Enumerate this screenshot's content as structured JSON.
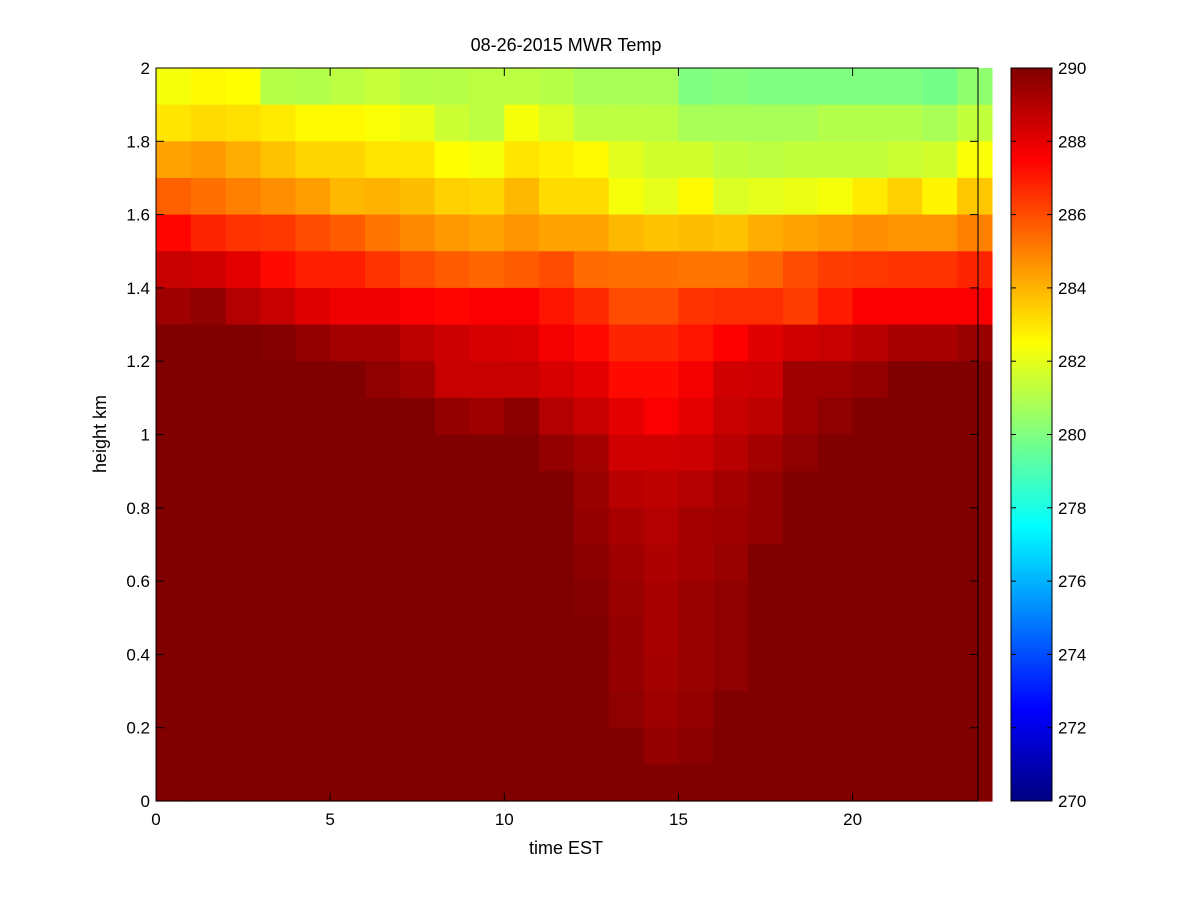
{
  "chart_data": {
    "type": "heatmap",
    "title": "08-26-2015 MWR Temp",
    "xlabel": "time EST",
    "ylabel": "height km",
    "xlim": [
      0,
      23.6
    ],
    "ylim": [
      0,
      2
    ],
    "x_ticks": [
      "0",
      "5",
      "10",
      "15",
      "20"
    ],
    "y_ticks": [
      "0",
      "0.2",
      "0.4",
      "0.6",
      "0.8",
      "1",
      "1.2",
      "1.4",
      "1.6",
      "1.8",
      "2"
    ],
    "colormap": "jet",
    "clim": [
      270,
      290
    ],
    "colorbar_ticks": [
      "270",
      "272",
      "274",
      "276",
      "278",
      "280",
      "282",
      "284",
      "286",
      "288",
      "290"
    ],
    "time_start": 0,
    "time_step": 1,
    "n_times": 24,
    "height_bin_km": 0.1,
    "rows_top_to_bottom": [
      [
        282.3,
        282.6,
        282.5,
        281.1,
        281.0,
        281.2,
        281.4,
        281.1,
        281.1,
        281.2,
        281.2,
        281.1,
        280.8,
        280.8,
        280.8,
        280.0,
        280.1,
        280.0,
        280.0,
        280.0,
        280.0,
        280.0,
        279.8,
        280.3
      ],
      [
        283.0,
        283.2,
        283.1,
        282.9,
        282.6,
        282.6,
        282.4,
        282.1,
        281.5,
        281.2,
        282.3,
        281.8,
        281.2,
        281.2,
        281.2,
        280.8,
        280.8,
        280.8,
        280.8,
        281.0,
        281.0,
        281.0,
        280.8,
        281.3
      ],
      [
        284.3,
        284.5,
        284.1,
        283.7,
        283.3,
        283.3,
        283.0,
        283.0,
        282.5,
        282.3,
        283.0,
        282.8,
        282.6,
        281.9,
        281.6,
        281.6,
        281.3,
        281.2,
        281.3,
        281.3,
        281.3,
        281.5,
        281.6,
        282.4
      ],
      [
        285.6,
        285.3,
        285.0,
        284.7,
        284.4,
        283.9,
        284.0,
        283.8,
        283.4,
        283.3,
        283.9,
        283.2,
        283.2,
        282.3,
        282.0,
        282.6,
        281.8,
        282.0,
        282.1,
        282.3,
        282.9,
        283.4,
        282.7,
        283.6
      ],
      [
        287.4,
        286.8,
        286.5,
        286.4,
        286.0,
        285.7,
        285.2,
        284.8,
        284.5,
        284.3,
        284.6,
        284.3,
        284.3,
        283.9,
        283.7,
        283.8,
        283.7,
        284.1,
        284.3,
        284.5,
        284.7,
        284.6,
        284.6,
        285.0
      ],
      [
        288.6,
        288.4,
        288.0,
        287.3,
        286.9,
        286.9,
        286.5,
        286.0,
        285.7,
        285.5,
        285.7,
        286.0,
        285.4,
        285.3,
        285.3,
        285.2,
        285.2,
        285.5,
        286.0,
        286.3,
        286.4,
        286.5,
        286.5,
        286.8
      ],
      [
        289.4,
        289.7,
        289.0,
        288.6,
        288.1,
        287.8,
        287.8,
        287.6,
        287.4,
        287.6,
        287.6,
        287.1,
        286.7,
        286.0,
        286.0,
        286.5,
        286.6,
        286.6,
        286.3,
        287.0,
        287.6,
        287.6,
        287.6,
        287.6
      ],
      [
        290.0,
        290.0,
        290.0,
        289.9,
        289.6,
        289.3,
        289.3,
        288.8,
        288.5,
        288.3,
        288.2,
        287.7,
        287.3,
        286.8,
        286.8,
        287.1,
        287.5,
        288.1,
        288.4,
        288.6,
        288.9,
        289.2,
        289.2,
        289.5
      ],
      [
        290.0,
        290.0,
        290.0,
        290.0,
        290.0,
        290.0,
        289.7,
        289.4,
        288.6,
        288.6,
        288.6,
        288.3,
        288.0,
        287.3,
        287.3,
        287.7,
        288.4,
        288.5,
        289.4,
        289.4,
        289.6,
        290.0,
        290.0,
        290.0
      ],
      [
        290.0,
        290.0,
        290.0,
        290.0,
        290.0,
        290.0,
        290.0,
        290.0,
        289.6,
        289.4,
        289.8,
        289.0,
        288.6,
        288.0,
        287.6,
        288.0,
        288.6,
        288.8,
        289.4,
        289.7,
        290.0,
        290.0,
        290.0,
        290.0
      ],
      [
        290.0,
        290.0,
        290.0,
        290.0,
        290.0,
        290.0,
        290.0,
        290.0,
        290.0,
        290.0,
        290.0,
        289.6,
        289.3,
        288.4,
        288.4,
        288.5,
        288.9,
        289.3,
        289.7,
        290.0,
        290.0,
        290.0,
        290.0,
        290.0
      ],
      [
        290.0,
        290.0,
        290.0,
        290.0,
        290.0,
        290.0,
        290.0,
        290.0,
        290.0,
        290.0,
        290.0,
        290.0,
        289.5,
        288.9,
        288.8,
        289.0,
        289.3,
        289.6,
        290.0,
        290.0,
        290.0,
        290.0,
        290.0,
        290.0
      ],
      [
        290.0,
        290.0,
        290.0,
        290.0,
        290.0,
        290.0,
        290.0,
        290.0,
        290.0,
        290.0,
        290.0,
        290.0,
        289.6,
        289.2,
        289.0,
        289.3,
        289.4,
        289.6,
        290.0,
        290.0,
        290.0,
        290.0,
        290.0,
        290.0
      ],
      [
        290.0,
        290.0,
        290.0,
        290.0,
        290.0,
        290.0,
        290.0,
        290.0,
        290.0,
        290.0,
        290.0,
        290.0,
        289.8,
        289.4,
        289.1,
        289.3,
        289.5,
        290.0,
        290.0,
        290.0,
        290.0,
        290.0,
        290.0,
        290.0
      ],
      [
        290.0,
        290.0,
        290.0,
        290.0,
        290.0,
        290.0,
        290.0,
        290.0,
        290.0,
        290.0,
        290.0,
        290.0,
        289.9,
        289.5,
        289.2,
        289.5,
        289.7,
        290.0,
        290.0,
        290.0,
        290.0,
        290.0,
        290.0,
        290.0
      ],
      [
        290.0,
        290.0,
        290.0,
        290.0,
        290.0,
        290.0,
        290.0,
        290.0,
        290.0,
        290.0,
        290.0,
        290.0,
        290.0,
        289.6,
        289.2,
        289.5,
        289.7,
        290.0,
        290.0,
        290.0,
        290.0,
        290.0,
        290.0,
        290.0
      ],
      [
        290.0,
        290.0,
        290.0,
        290.0,
        290.0,
        290.0,
        290.0,
        290.0,
        290.0,
        290.0,
        290.0,
        290.0,
        290.0,
        289.6,
        289.3,
        289.5,
        289.7,
        290.0,
        290.0,
        290.0,
        290.0,
        290.0,
        290.0,
        290.0
      ],
      [
        290.0,
        290.0,
        290.0,
        290.0,
        290.0,
        290.0,
        290.0,
        290.0,
        290.0,
        290.0,
        290.0,
        290.0,
        290.0,
        289.7,
        289.4,
        289.6,
        290.0,
        290.0,
        290.0,
        290.0,
        290.0,
        290.0,
        290.0,
        290.0
      ],
      [
        290.0,
        290.0,
        290.0,
        290.0,
        290.0,
        290.0,
        290.0,
        290.0,
        290.0,
        290.0,
        290.0,
        290.0,
        290.0,
        290.0,
        289.6,
        289.8,
        290.0,
        290.0,
        290.0,
        290.0,
        290.0,
        290.0,
        290.0,
        290.0
      ],
      [
        290.0,
        290.0,
        290.0,
        290.0,
        290.0,
        290.0,
        290.0,
        290.0,
        290.0,
        290.0,
        290.0,
        290.0,
        290.0,
        290.0,
        290.0,
        290.0,
        290.0,
        290.0,
        290.0,
        290.0,
        290.0,
        290.0,
        290.0,
        290.0
      ]
    ]
  }
}
